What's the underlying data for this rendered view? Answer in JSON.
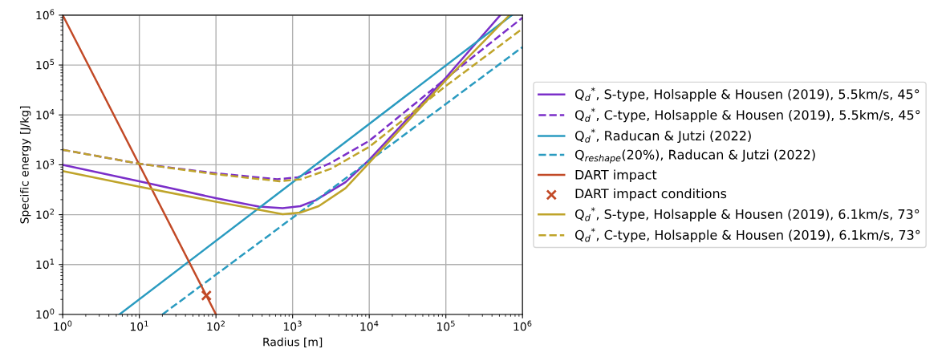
{
  "chart_data": {
    "type": "line",
    "xlabel": "Radius [m]",
    "ylabel": "Specific energy [J/kg]",
    "log": "xy",
    "grid": true,
    "legend": "right",
    "xlim": [
      1,
      1000000
    ],
    "ylim": [
      1,
      1000000
    ],
    "xticks": [
      {
        "value": 1,
        "label": "10$^{0}$"
      },
      {
        "value": 10,
        "label": "10$^{1}$"
      },
      {
        "value": 100,
        "label": "10$^{2}$"
      },
      {
        "value": 1000,
        "label": "10$^{3}$"
      },
      {
        "value": 10000,
        "label": "10$^{4}$"
      },
      {
        "value": 100000,
        "label": "10$^{5}$"
      },
      {
        "value": 1000000,
        "label": "10$^{6}$"
      }
    ],
    "yticks": [
      {
        "value": 1,
        "label": "10$^{0}$"
      },
      {
        "value": 10,
        "label": "10$^{1}$"
      },
      {
        "value": 100,
        "label": "10$^{2}$"
      },
      {
        "value": 1000,
        "label": "10$^{3}$"
      },
      {
        "value": 10000,
        "label": "10$^{4}$"
      },
      {
        "value": 100000,
        "label": "10$^{5}$"
      },
      {
        "value": 1000000,
        "label": "10$^{6}$"
      }
    ],
    "series": [
      {
        "name": "Q$_{d}$$^{*}$, S-type, Holsapple & Housen (2019), 5.5km/s, 45°",
        "color": "#7b2fc9",
        "line_style": "solid",
        "x": [
          1,
          10,
          100,
          363,
          741,
          1259,
          1995,
          4898,
          10000,
          100000,
          513000
        ],
        "values": [
          1000,
          468,
          214,
          145,
          135,
          148,
          195,
          447,
          1259,
          56000,
          1000000
        ]
      },
      {
        "name": "Q$_{d}$$^{*}$, C-type, Holsapple & Housen (2019), 5.5km/s, 45°",
        "color": "#7b2fc9",
        "line_style": "dashed",
        "x": [
          1,
          10,
          100,
          631,
          1175,
          3162,
          10000,
          100000,
          1000000
        ],
        "values": [
          2000,
          1050,
          676,
          513,
          562,
          1096,
          3020,
          53700,
          891000
        ]
      },
      {
        "name": "Q$_{d}$$^{*}$, Raducan & Jutzi (2022)",
        "color": "#2a9bc0",
        "line_style": "solid",
        "x": [
          5.5,
          10000,
          724000
        ],
        "values": [
          1,
          6600,
          1000000
        ]
      },
      {
        "name": "Q$_{reshape}$(20%), Raducan & Jutzi (2022)",
        "color": "#2a9bc0",
        "line_style": "dashed",
        "x": [
          20,
          1000000
        ],
        "values": [
          1,
          229000
        ]
      },
      {
        "name": "DART impact",
        "color": "#c24a27",
        "line_style": "solid",
        "x": [
          1,
          100
        ],
        "values": [
          1000000,
          1
        ]
      },
      {
        "name": "DART impact conditions",
        "type": "scatter",
        "marker": "cross",
        "color": "#c24a27",
        "x": [
          75
        ],
        "values": [
          2.4
        ]
      },
      {
        "name": "Q$_{d}$$^{*}$, S-type, Holsapple & Housen (2019), 6.1km/s, 73°",
        "color": "#bfa42a",
        "line_style": "solid",
        "x": [
          1,
          10,
          100,
          741,
          1259,
          2188,
          4898,
          10000,
          100000,
          676000
        ],
        "values": [
          750,
          363,
          182,
          102,
          110,
          148,
          339,
          1096,
          50000,
          1000000
        ]
      },
      {
        "name": "Q$_{d}$$^{*}$, C-type, Holsapple & Housen (2019), 6.1km/s, 73°",
        "color": "#bfa42a",
        "line_style": "dashed",
        "x": [
          1,
          10,
          100,
          676,
          1288,
          3162,
          10000,
          100000,
          1000000
        ],
        "values": [
          2000,
          1050,
          646,
          468,
          513,
          832,
          2290,
          38000,
          537000
        ]
      }
    ]
  }
}
